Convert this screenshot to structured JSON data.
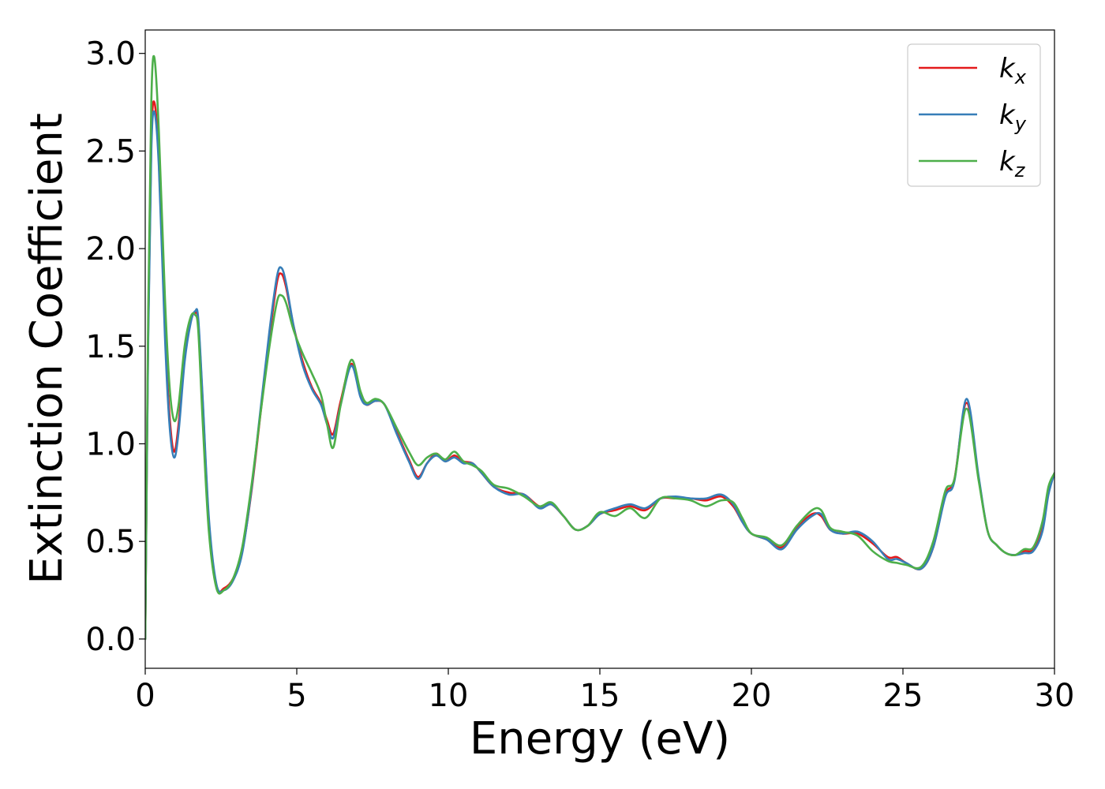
{
  "chart_data": {
    "type": "line",
    "title": "",
    "xlabel": "Energy (eV)",
    "ylabel": "Extinction Coefficient",
    "xlim": [
      0,
      30
    ],
    "ylim": [
      -0.15,
      3.12
    ],
    "xticks": [
      0,
      5,
      10,
      15,
      20,
      25,
      30
    ],
    "yticks": [
      0.0,
      0.5,
      1.0,
      1.5,
      2.0,
      2.5,
      3.0
    ],
    "xtick_labels": [
      "0",
      "5",
      "10",
      "15",
      "20",
      "25",
      "30"
    ],
    "ytick_labels": [
      "0.0",
      "0.5",
      "1.0",
      "1.5",
      "2.0",
      "2.5",
      "3.0"
    ],
    "grid": false,
    "legend_position": "top-right",
    "series": [
      {
        "name": "k_x",
        "legend_base": "k",
        "legend_sub": "x",
        "color": "#e41a1c",
        "x": [
          0,
          0.1,
          0.2,
          0.3,
          0.45,
          0.65,
          0.8,
          0.95,
          1.1,
          1.3,
          1.5,
          1.65,
          1.75,
          1.9,
          2.1,
          2.35,
          2.6,
          2.9,
          3.2,
          3.5,
          3.8,
          4.1,
          4.35,
          4.5,
          4.65,
          4.9,
          5.2,
          5.5,
          5.8,
          6.0,
          6.2,
          6.45,
          6.8,
          7.1,
          7.3,
          7.6,
          7.9,
          8.3,
          8.7,
          9.0,
          9.3,
          9.6,
          9.9,
          10.2,
          10.5,
          10.8,
          11.1,
          11.5,
          12.0,
          12.5,
          13.0,
          13.4,
          13.8,
          14.2,
          14.6,
          15.0,
          15.5,
          16.0,
          16.5,
          17.0,
          17.5,
          18.0,
          18.5,
          19.0,
          19.4,
          19.7,
          20.0,
          20.5,
          21.0,
          21.5,
          22.0,
          22.3,
          22.6,
          23.0,
          23.5,
          24.0,
          24.5,
          24.8,
          25.1,
          25.6,
          26.0,
          26.4,
          26.7,
          27.1,
          27.5,
          27.8,
          28.1,
          28.4,
          28.7,
          29.0,
          29.3,
          29.6,
          29.8,
          30.0
        ],
        "y": [
          0,
          1.6,
          2.55,
          2.75,
          2.45,
          1.6,
          1.15,
          0.96,
          1.1,
          1.45,
          1.63,
          1.67,
          1.62,
          1.2,
          0.6,
          0.27,
          0.26,
          0.31,
          0.45,
          0.75,
          1.15,
          1.55,
          1.83,
          1.87,
          1.8,
          1.6,
          1.42,
          1.29,
          1.21,
          1.12,
          1.05,
          1.22,
          1.41,
          1.25,
          1.2,
          1.22,
          1.2,
          1.06,
          0.92,
          0.83,
          0.9,
          0.95,
          0.91,
          0.94,
          0.91,
          0.9,
          0.85,
          0.78,
          0.75,
          0.74,
          0.68,
          0.69,
          0.63,
          0.56,
          0.58,
          0.64,
          0.66,
          0.68,
          0.66,
          0.72,
          0.72,
          0.72,
          0.71,
          0.73,
          0.68,
          0.6,
          0.54,
          0.51,
          0.47,
          0.57,
          0.64,
          0.63,
          0.56,
          0.54,
          0.54,
          0.49,
          0.42,
          0.42,
          0.39,
          0.36,
          0.47,
          0.74,
          0.82,
          1.21,
          0.82,
          0.55,
          0.48,
          0.44,
          0.43,
          0.45,
          0.46,
          0.58,
          0.76,
          0.85
        ]
      },
      {
        "name": "k_y",
        "legend_base": "k",
        "legend_sub": "y",
        "color": "#377eb8",
        "x": [
          0,
          0.1,
          0.2,
          0.3,
          0.45,
          0.65,
          0.8,
          0.95,
          1.1,
          1.3,
          1.5,
          1.65,
          1.75,
          1.9,
          2.1,
          2.35,
          2.6,
          2.9,
          3.2,
          3.5,
          3.8,
          4.1,
          4.35,
          4.5,
          4.65,
          4.9,
          5.2,
          5.5,
          5.8,
          6.0,
          6.2,
          6.45,
          6.8,
          7.1,
          7.3,
          7.6,
          7.9,
          8.3,
          8.7,
          9.0,
          9.3,
          9.6,
          9.9,
          10.2,
          10.5,
          10.8,
          11.1,
          11.5,
          12.0,
          12.5,
          13.0,
          13.4,
          13.8,
          14.2,
          14.6,
          15.0,
          15.5,
          16.0,
          16.5,
          17.0,
          17.5,
          18.0,
          18.5,
          19.0,
          19.4,
          19.7,
          20.0,
          20.5,
          21.0,
          21.5,
          22.0,
          22.3,
          22.6,
          23.0,
          23.5,
          24.0,
          24.5,
          24.8,
          25.1,
          25.6,
          26.0,
          26.4,
          26.7,
          27.1,
          27.5,
          27.8,
          28.1,
          28.4,
          28.7,
          29.0,
          29.3,
          29.6,
          29.8,
          30.0
        ],
        "y": [
          0,
          1.55,
          2.5,
          2.7,
          2.42,
          1.55,
          1.1,
          0.93,
          1.06,
          1.42,
          1.62,
          1.68,
          1.64,
          1.22,
          0.62,
          0.28,
          0.25,
          0.3,
          0.44,
          0.76,
          1.17,
          1.58,
          1.86,
          1.9,
          1.82,
          1.6,
          1.4,
          1.28,
          1.2,
          1.1,
          1.03,
          1.2,
          1.4,
          1.24,
          1.2,
          1.22,
          1.2,
          1.05,
          0.91,
          0.82,
          0.9,
          0.94,
          0.91,
          0.93,
          0.9,
          0.9,
          0.85,
          0.78,
          0.74,
          0.74,
          0.67,
          0.69,
          0.63,
          0.56,
          0.58,
          0.64,
          0.67,
          0.69,
          0.67,
          0.72,
          0.73,
          0.72,
          0.72,
          0.74,
          0.69,
          0.6,
          0.54,
          0.51,
          0.46,
          0.56,
          0.63,
          0.64,
          0.56,
          0.54,
          0.55,
          0.5,
          0.41,
          0.41,
          0.39,
          0.36,
          0.47,
          0.73,
          0.81,
          1.23,
          0.83,
          0.55,
          0.48,
          0.44,
          0.43,
          0.44,
          0.45,
          0.55,
          0.74,
          0.85
        ]
      },
      {
        "name": "k_z",
        "legend_base": "k",
        "legend_sub": "z",
        "color": "#4daf4a",
        "x": [
          0,
          0.1,
          0.2,
          0.3,
          0.45,
          0.65,
          0.8,
          0.95,
          1.1,
          1.3,
          1.5,
          1.65,
          1.75,
          1.9,
          2.1,
          2.35,
          2.6,
          2.9,
          3.2,
          3.5,
          3.8,
          4.1,
          4.35,
          4.5,
          4.65,
          4.9,
          5.2,
          5.5,
          5.8,
          6.0,
          6.2,
          6.45,
          6.8,
          7.1,
          7.3,
          7.6,
          7.9,
          8.3,
          8.7,
          9.0,
          9.3,
          9.6,
          9.9,
          10.2,
          10.5,
          10.8,
          11.1,
          11.5,
          12.0,
          12.5,
          13.0,
          13.4,
          13.8,
          14.2,
          14.6,
          15.0,
          15.5,
          16.0,
          16.5,
          17.0,
          17.5,
          18.0,
          18.5,
          19.0,
          19.4,
          19.7,
          20.0,
          20.5,
          21.0,
          21.5,
          22.0,
          22.3,
          22.6,
          23.0,
          23.5,
          24.0,
          24.5,
          24.8,
          25.1,
          25.6,
          26.0,
          26.4,
          26.7,
          27.1,
          27.5,
          27.8,
          28.1,
          28.4,
          28.7,
          29.0,
          29.3,
          29.6,
          29.8,
          30.0
        ],
        "y": [
          0,
          1.7,
          2.75,
          2.98,
          2.6,
          1.75,
          1.3,
          1.12,
          1.2,
          1.5,
          1.65,
          1.66,
          1.58,
          1.1,
          0.55,
          0.26,
          0.25,
          0.31,
          0.47,
          0.78,
          1.15,
          1.5,
          1.73,
          1.76,
          1.72,
          1.58,
          1.46,
          1.36,
          1.25,
          1.1,
          0.98,
          1.2,
          1.43,
          1.27,
          1.21,
          1.23,
          1.2,
          1.08,
          0.96,
          0.89,
          0.93,
          0.95,
          0.92,
          0.96,
          0.91,
          0.89,
          0.86,
          0.79,
          0.77,
          0.73,
          0.68,
          0.7,
          0.63,
          0.56,
          0.58,
          0.65,
          0.63,
          0.67,
          0.62,
          0.72,
          0.72,
          0.71,
          0.68,
          0.71,
          0.7,
          0.62,
          0.54,
          0.52,
          0.48,
          0.58,
          0.66,
          0.66,
          0.57,
          0.55,
          0.53,
          0.45,
          0.4,
          0.39,
          0.38,
          0.37,
          0.5,
          0.76,
          0.82,
          1.18,
          0.81,
          0.55,
          0.48,
          0.44,
          0.43,
          0.46,
          0.47,
          0.6,
          0.78,
          0.85
        ]
      }
    ]
  }
}
